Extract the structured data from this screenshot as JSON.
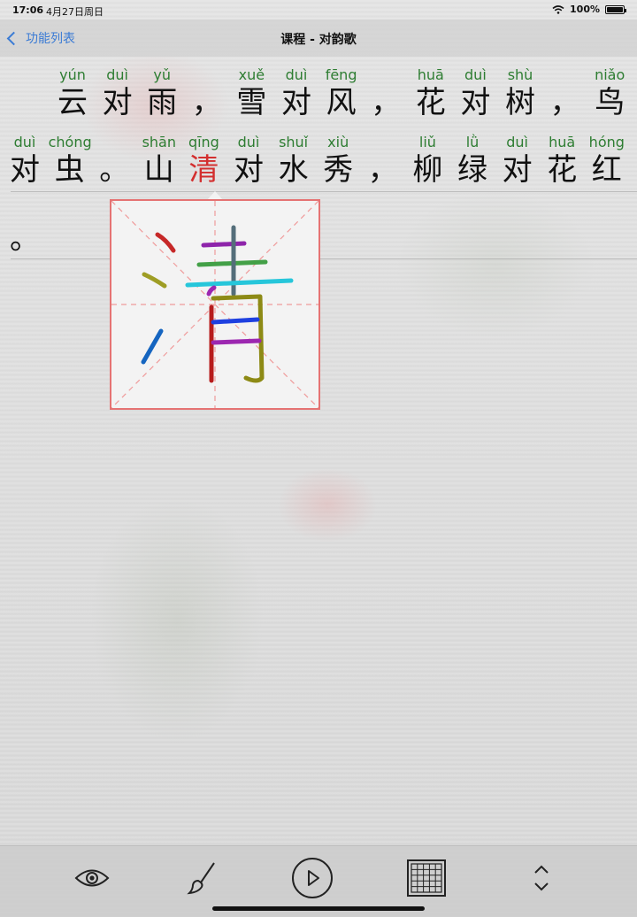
{
  "status_bar": {
    "time": "17:06",
    "date": "4月27日周日",
    "battery": "100%"
  },
  "nav": {
    "back_label": "功能列表",
    "title": "课程 - 对韵歌"
  },
  "lines": [
    [
      {
        "hanzi": "云",
        "pinyin": "yún"
      },
      {
        "hanzi": "对",
        "pinyin": "duì"
      },
      {
        "hanzi": "雨",
        "pinyin": "yǔ"
      },
      {
        "hanzi": "，",
        "pinyin": ""
      },
      {
        "hanzi": "雪",
        "pinyin": "xuě"
      },
      {
        "hanzi": "对",
        "pinyin": "duì"
      },
      {
        "hanzi": "风",
        "pinyin": "fēng"
      },
      {
        "hanzi": "，",
        "pinyin": ""
      },
      {
        "hanzi": "花",
        "pinyin": "huā"
      },
      {
        "hanzi": "对",
        "pinyin": "duì"
      },
      {
        "hanzi": "树",
        "pinyin": "shù"
      },
      {
        "hanzi": "，",
        "pinyin": ""
      },
      {
        "hanzi": "鸟",
        "pinyin": "niǎo"
      }
    ],
    [
      {
        "hanzi": "对",
        "pinyin": "duì"
      },
      {
        "hanzi": "虫",
        "pinyin": "chóng"
      },
      {
        "hanzi": "。",
        "pinyin": ""
      },
      {
        "hanzi": "山",
        "pinyin": "shān"
      },
      {
        "hanzi": "清",
        "pinyin": "qīng",
        "active": true
      },
      {
        "hanzi": "对",
        "pinyin": "duì"
      },
      {
        "hanzi": "水",
        "pinyin": "shuǐ"
      },
      {
        "hanzi": "秀",
        "pinyin": "xiù"
      },
      {
        "hanzi": "，",
        "pinyin": ""
      },
      {
        "hanzi": "柳",
        "pinyin": "liǔ"
      },
      {
        "hanzi": "绿",
        "pinyin": "lǜ"
      },
      {
        "hanzi": "对",
        "pinyin": "duì"
      },
      {
        "hanzi": "花",
        "pinyin": "huā"
      },
      {
        "hanzi": "红",
        "pinyin": "hóng"
      }
    ],
    [
      {
        "hanzi": "。",
        "pinyin": ""
      }
    ]
  ],
  "stroke_popup": {
    "character": "清",
    "stroke_colors": [
      "#c62828",
      "#9e9d24",
      "#1565c0",
      "#8e24aa",
      "#43a047",
      "#546e7a",
      "#26c6da",
      "#b71c1c",
      "#8d8a15",
      "#1e40e0",
      "#9c27b0",
      "#9c27b0"
    ]
  },
  "toolbar": {
    "items": [
      "eye-icon",
      "brush-icon",
      "play-icon",
      "grid-icon",
      "sort-icon"
    ]
  },
  "colors": {
    "accent": "#3a7bd5",
    "pinyin": "#2e7d32",
    "active_char": "#d32f2f",
    "popup_border": "#e57373"
  }
}
